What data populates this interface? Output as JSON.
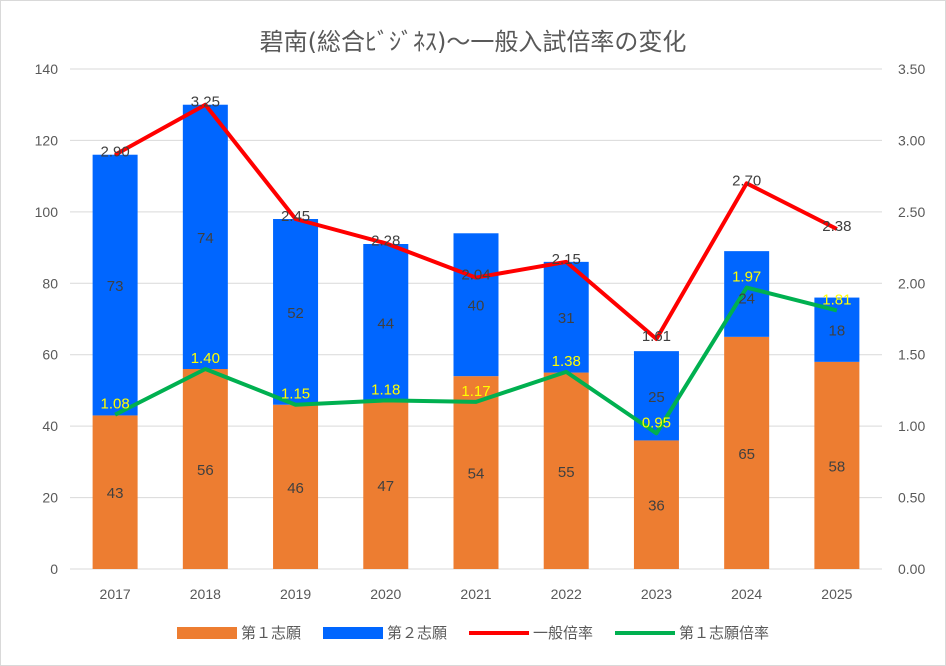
{
  "chart_data": {
    "type": "bar+line",
    "title": "碧南(総合ﾋﾞｼﾞﾈｽ)〜一般入試倍率の変化",
    "categories": [
      "2017",
      "2018",
      "2019",
      "2020",
      "2021",
      "2022",
      "2023",
      "2024",
      "2025"
    ],
    "y_left": {
      "range": [
        0,
        140
      ],
      "ticks": [
        "0",
        "20",
        "40",
        "60",
        "80",
        "100",
        "120",
        "140"
      ]
    },
    "y_right": {
      "range": [
        0,
        3.5
      ],
      "ticks": [
        "0.00",
        "0.50",
        "1.00",
        "1.50",
        "2.00",
        "2.50",
        "3.00",
        "3.50"
      ]
    },
    "grid": true,
    "legend_position": "bottom",
    "series": [
      {
        "name": "第１志願",
        "type": "stacked-bar",
        "axis": "left",
        "color": "#ED7D31",
        "values": [
          43,
          56,
          46,
          47,
          54,
          55,
          36,
          65,
          58
        ]
      },
      {
        "name": "第２志願",
        "type": "stacked-bar",
        "axis": "left",
        "color": "#0066FF",
        "values": [
          73,
          74,
          52,
          44,
          40,
          31,
          25,
          24,
          18
        ]
      },
      {
        "name": "一般倍率",
        "type": "line",
        "axis": "right",
        "color": "#FF0000",
        "values": [
          2.9,
          3.25,
          2.45,
          2.28,
          2.04,
          2.15,
          1.61,
          2.7,
          2.38
        ],
        "labels": [
          "2.90",
          "3.25",
          "2.45",
          "2.28",
          "2.04",
          "2.15",
          "1.61",
          "2.70",
          "2.38"
        ]
      },
      {
        "name": "第１志願倍率",
        "type": "line",
        "axis": "right",
        "color": "#00B050",
        "values": [
          1.08,
          1.4,
          1.15,
          1.18,
          1.17,
          1.38,
          0.95,
          1.97,
          1.81
        ],
        "labels": [
          "1.08",
          "1.40",
          "1.15",
          "1.18",
          "1.17",
          "1.38",
          "0.95",
          "1.97",
          "1.81"
        ]
      }
    ]
  }
}
